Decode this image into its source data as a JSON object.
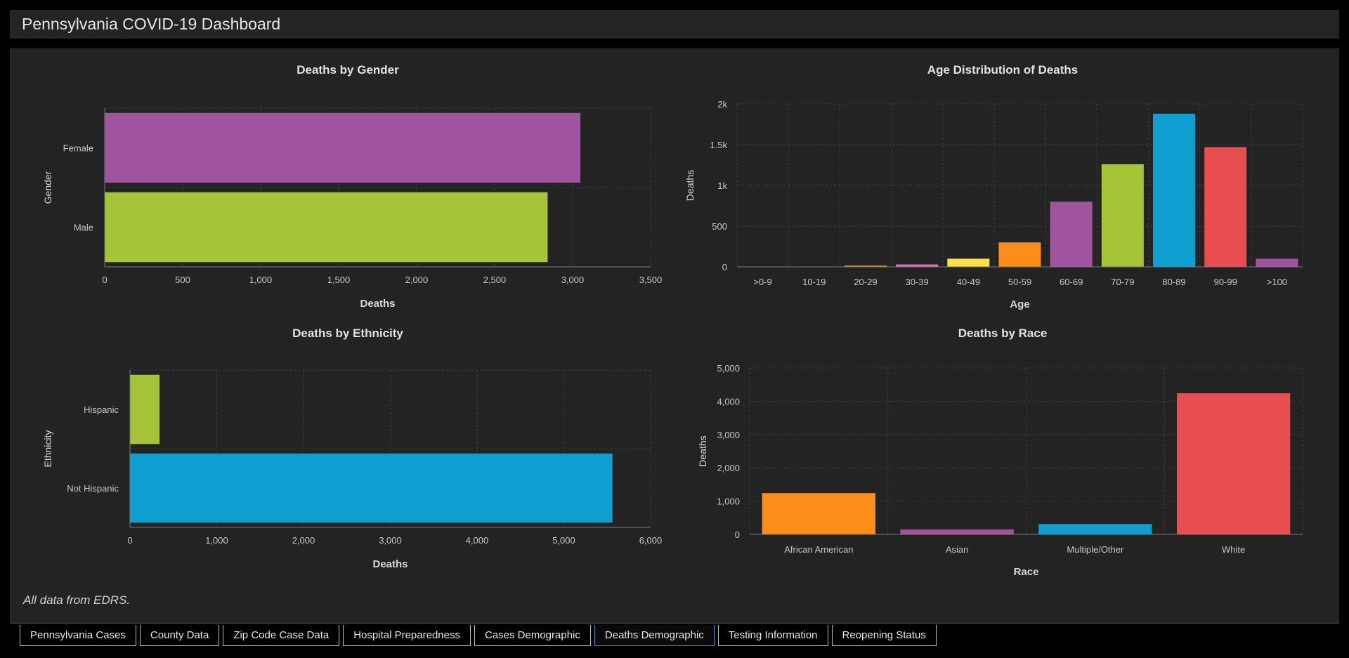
{
  "header": {
    "title": "Pennsylvania COVID-19 Dashboard"
  },
  "footnote": "All data from EDRS.",
  "tabs": [
    {
      "label": "Pennsylvania Cases",
      "active": false
    },
    {
      "label": "County Data",
      "active": false
    },
    {
      "label": "Zip Code Case Data",
      "active": false
    },
    {
      "label": "Hospital Preparedness",
      "active": false
    },
    {
      "label": "Cases Demographic",
      "active": false
    },
    {
      "label": "Deaths Demographic",
      "active": true
    },
    {
      "label": "Testing Information",
      "active": false
    },
    {
      "label": "Reopening Status",
      "active": false
    }
  ],
  "chart_data": [
    {
      "id": "gender",
      "type": "bar",
      "orientation": "horizontal",
      "title": "Deaths by Gender",
      "xlabel": "Deaths",
      "ylabel": "Gender",
      "categories": [
        "Female",
        "Male"
      ],
      "values": [
        3050,
        2840
      ],
      "colors": [
        "#a0539f",
        "#a6c437"
      ],
      "xlim": [
        0,
        3500
      ],
      "ticks": [
        0,
        500,
        1000,
        1500,
        2000,
        2500,
        3000,
        3500
      ],
      "tick_labels": [
        "0",
        "500",
        "1,000",
        "1,500",
        "2,000",
        "2,500",
        "3,000",
        "3,500"
      ],
      "grid": true
    },
    {
      "id": "age",
      "type": "bar",
      "orientation": "vertical",
      "title": "Age Distribution of Deaths",
      "xlabel": "Age",
      "ylabel": "Deaths",
      "categories": [
        ">0-9",
        "10-19",
        "20-29",
        "30-39",
        "40-49",
        "50-59",
        "60-69",
        "70-79",
        "80-89",
        "90-99",
        ">100"
      ],
      "values": [
        0,
        2,
        15,
        30,
        100,
        300,
        800,
        1260,
        1880,
        1470,
        100
      ],
      "colors": [
        "#c8c8c8",
        "#c8c8c8",
        "#d9a52b",
        "#e36bbd",
        "#fde047",
        "#fb8d19",
        "#a0539f",
        "#a6c437",
        "#0e9fd0",
        "#e84d50",
        "#a0539f"
      ],
      "ylim": [
        0,
        2000
      ],
      "ticks": [
        0,
        500,
        1000,
        1500,
        2000
      ],
      "tick_labels": [
        "0",
        "500",
        "1k",
        "1.5k",
        "2k"
      ],
      "grid": true
    },
    {
      "id": "ethnicity",
      "type": "bar",
      "orientation": "horizontal",
      "title": "Deaths by Ethnicity",
      "xlabel": "Deaths",
      "ylabel": "Ethnicity",
      "categories": [
        "Hispanic",
        "Not Hispanic"
      ],
      "values": [
        340,
        5560
      ],
      "colors": [
        "#a6c437",
        "#0e9fd0"
      ],
      "xlim": [
        0,
        6000
      ],
      "ticks": [
        0,
        1000,
        2000,
        3000,
        4000,
        5000,
        6000
      ],
      "tick_labels": [
        "0",
        "1,000",
        "2,000",
        "3,000",
        "4,000",
        "5,000",
        "6,000"
      ],
      "grid": true
    },
    {
      "id": "race",
      "type": "bar",
      "orientation": "vertical",
      "title": "Deaths by Race",
      "xlabel": "Race",
      "ylabel": "Deaths",
      "categories": [
        "African American",
        "Asian",
        "Multiple/Other",
        "White"
      ],
      "values": [
        1240,
        150,
        310,
        4240
      ],
      "colors": [
        "#fb8d19",
        "#a0539f",
        "#0e9fd0",
        "#e84d50"
      ],
      "ylim": [
        0,
        5000
      ],
      "ticks": [
        0,
        1000,
        2000,
        3000,
        4000,
        5000
      ],
      "tick_labels": [
        "0",
        "1,000",
        "2,000",
        "3,000",
        "4,000",
        "5,000"
      ],
      "grid": true
    }
  ]
}
